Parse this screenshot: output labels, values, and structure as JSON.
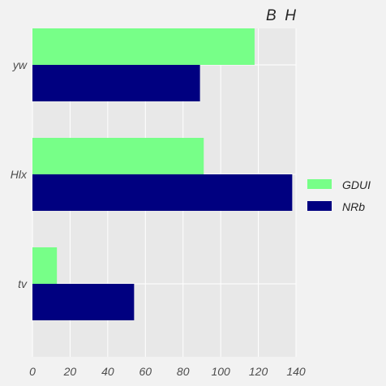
{
  "chart_data": {
    "type": "bar",
    "orientation": "horizontal",
    "title": "B  H",
    "categories": [
      "yw",
      "Hlx",
      "tv"
    ],
    "series": [
      {
        "name": "GDUI",
        "values": [
          118,
          91,
          13
        ],
        "color": "#77ff88"
      },
      {
        "name": "NRb",
        "values": [
          89,
          138,
          54
        ],
        "color": "#000080"
      }
    ],
    "xlim": [
      0,
      140
    ],
    "xticks": [
      "0",
      "20",
      "40",
      "60",
      "80",
      "100",
      "120",
      "140"
    ],
    "xlabel": "",
    "ylabel": "",
    "grid": true,
    "legend_placement": "right",
    "background": "#e8e8e8",
    "figure_background": "#f2f2f2",
    "grid_color": "#ffffff"
  }
}
